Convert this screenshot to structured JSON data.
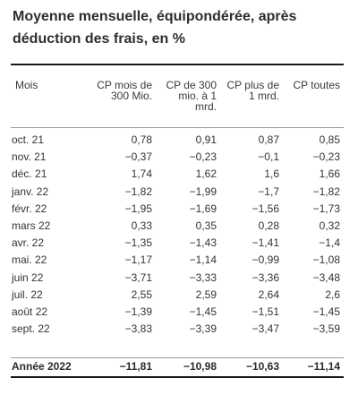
{
  "title": "Moyenne mensuelle, équipondérée, après déduction des frais, en %",
  "columns": {
    "mois": "Mois",
    "c1_line1": "CP mois de",
    "c1_line2": "300 Mio.",
    "c2_line1": "CP de 300",
    "c2_line2": "mio. à 1",
    "c2_line3": "mrd.",
    "c3_line1": "CP plus de",
    "c3_line2": "1 mrd.",
    "c4_line1": "CP toutes"
  },
  "rows": [
    {
      "mois": "oct. 21",
      "c1": "0,78",
      "c2": "0,91",
      "c3": "0,87",
      "c4": "0,85"
    },
    {
      "mois": "nov. 21",
      "c1": "−0,37",
      "c2": "−0,23",
      "c3": "−0,1",
      "c4": "−0,23"
    },
    {
      "mois": "déc. 21",
      "c1": "1,74",
      "c2": "1,62",
      "c3": "1,6",
      "c4": "1,66"
    },
    {
      "mois": "janv. 22",
      "c1": "−1,82",
      "c2": "−1,99",
      "c3": "−1,7",
      "c4": "−1,82"
    },
    {
      "mois": "févr. 22",
      "c1": "−1,95",
      "c2": "−1,69",
      "c3": "−1,56",
      "c4": "−1,73"
    },
    {
      "mois": "mars 22",
      "c1": "0,33",
      "c2": "0,35",
      "c3": "0,28",
      "c4": "0,32"
    },
    {
      "mois": "avr. 22",
      "c1": "−1,35",
      "c2": "−1,43",
      "c3": "−1,41",
      "c4": "−1,4"
    },
    {
      "mois": "mai. 22",
      "c1": "−1,17",
      "c2": "−1,14",
      "c3": "−0,99",
      "c4": "−1,08"
    },
    {
      "mois": "juin 22",
      "c1": "−3,71",
      "c2": "−3,33",
      "c3": "−3,36",
      "c4": "−3,48"
    },
    {
      "mois": "juil. 22",
      "c1": "2,55",
      "c2": "2,59",
      "c3": "2,64",
      "c4": "2,6"
    },
    {
      "mois": "août 22",
      "c1": "−1,39",
      "c2": "−1,45",
      "c3": "−1,51",
      "c4": "−1,45"
    },
    {
      "mois": "sept. 22",
      "c1": "−3,83",
      "c2": "−3,39",
      "c3": "−3,47",
      "c4": "−3,59"
    }
  ],
  "total": {
    "mois": "Année 2022",
    "c1": "−11,81",
    "c2": "−10,98",
    "c3": "−10,63",
    "c4": "−11,14"
  }
}
